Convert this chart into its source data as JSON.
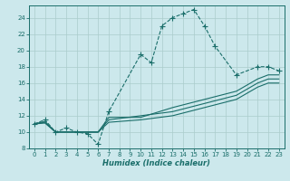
{
  "xlabel": "Humidex (Indice chaleur)",
  "bg_color": "#cce8ec",
  "grid_color": "#aacccc",
  "line_color": "#1a6e6a",
  "xlim": [
    -0.5,
    23.5
  ],
  "ylim": [
    8,
    25.5
  ],
  "xticks": [
    0,
    1,
    2,
    3,
    4,
    5,
    6,
    7,
    8,
    9,
    10,
    11,
    12,
    13,
    14,
    15,
    16,
    17,
    18,
    19,
    20,
    21,
    22,
    23
  ],
  "yticks": [
    8,
    10,
    12,
    14,
    16,
    18,
    20,
    22,
    24
  ],
  "lines": [
    {
      "x": [
        0,
        1,
        2,
        3,
        4,
        5,
        6,
        7,
        10,
        11,
        12,
        13,
        14,
        15,
        16,
        17,
        19,
        21,
        22,
        23
      ],
      "y": [
        11,
        11.5,
        10,
        10.5,
        10,
        9.8,
        8.5,
        12.5,
        19.5,
        18.5,
        23,
        24,
        24.5,
        25,
        23,
        20.5,
        17,
        18,
        18,
        17.5
      ],
      "marker": "+"
    },
    {
      "x": [
        0,
        1,
        2,
        3,
        4,
        5,
        6,
        7,
        10,
        13,
        16,
        19,
        21,
        22,
        23
      ],
      "y": [
        11,
        11.2,
        10,
        10,
        10,
        10,
        10,
        11.8,
        11.8,
        13,
        14,
        15,
        16.5,
        17,
        17
      ],
      "marker": null
    },
    {
      "x": [
        0,
        1,
        2,
        3,
        4,
        5,
        6,
        7,
        10,
        13,
        16,
        19,
        21,
        22,
        23
      ],
      "y": [
        11,
        11.3,
        10,
        10,
        10,
        10,
        10,
        11.5,
        12,
        12.5,
        13.5,
        14.5,
        16,
        16.5,
        16.5
      ],
      "marker": null
    },
    {
      "x": [
        0,
        1,
        2,
        3,
        4,
        5,
        6,
        7,
        10,
        13,
        16,
        19,
        21,
        22,
        23
      ],
      "y": [
        11,
        11.1,
        10,
        10,
        10,
        10,
        10,
        11.2,
        11.5,
        12,
        13,
        14,
        15.5,
        16,
        16
      ],
      "marker": null
    }
  ]
}
